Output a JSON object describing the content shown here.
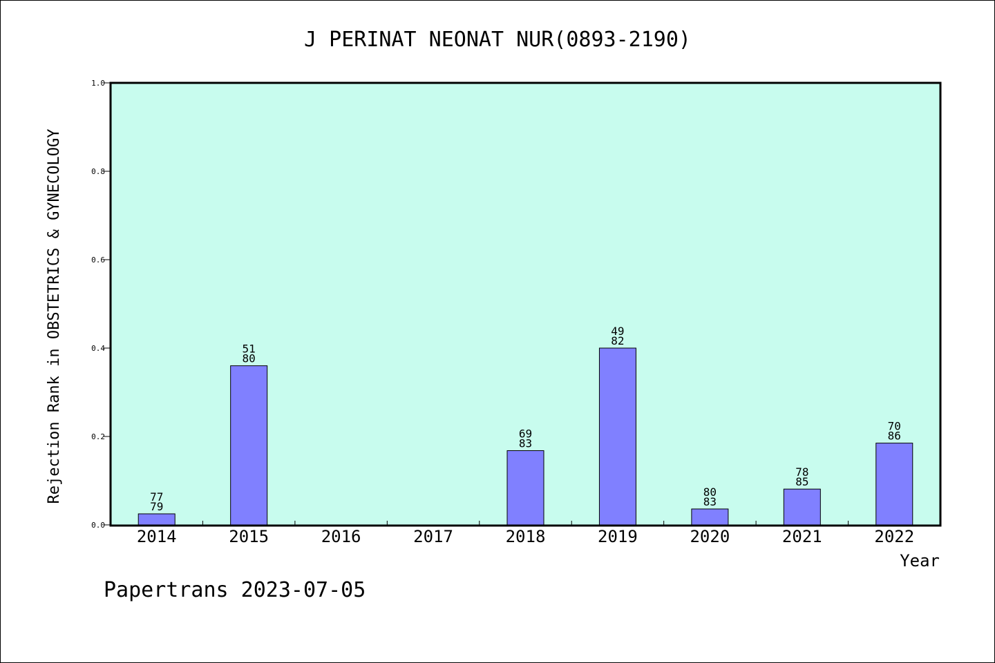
{
  "chart_data": {
    "type": "bar",
    "title": "J PERINAT NEONAT NUR(0893-2190)",
    "xlabel": "Year",
    "ylabel": "Rejection Rank in OBSTETRICS & GYNECOLOGY",
    "ylim": [
      0,
      1.0
    ],
    "yticks": [
      "0.0",
      "0.2",
      "0.4",
      "0.6",
      "0.8",
      "1.0"
    ],
    "categories": [
      "2014",
      "2015",
      "2016",
      "2017",
      "2018",
      "2019",
      "2020",
      "2021",
      "2022"
    ],
    "values": [
      0.025,
      0.36,
      null,
      null,
      0.168,
      0.4,
      0.036,
      0.081,
      0.185
    ],
    "labels": [
      [
        "77",
        "79"
      ],
      [
        "51",
        "80"
      ],
      null,
      null,
      [
        "69",
        "83"
      ],
      [
        "49",
        "82"
      ],
      [
        "80",
        "83"
      ],
      [
        "78",
        "85"
      ],
      [
        "70",
        "86"
      ]
    ],
    "grid": false,
    "colors": {
      "plot_background": "#c8fcee",
      "bar_fill": "#8080ff",
      "bar_stroke": "#000000"
    }
  },
  "footer": {
    "text": "Papertrans 2023-07-05"
  }
}
